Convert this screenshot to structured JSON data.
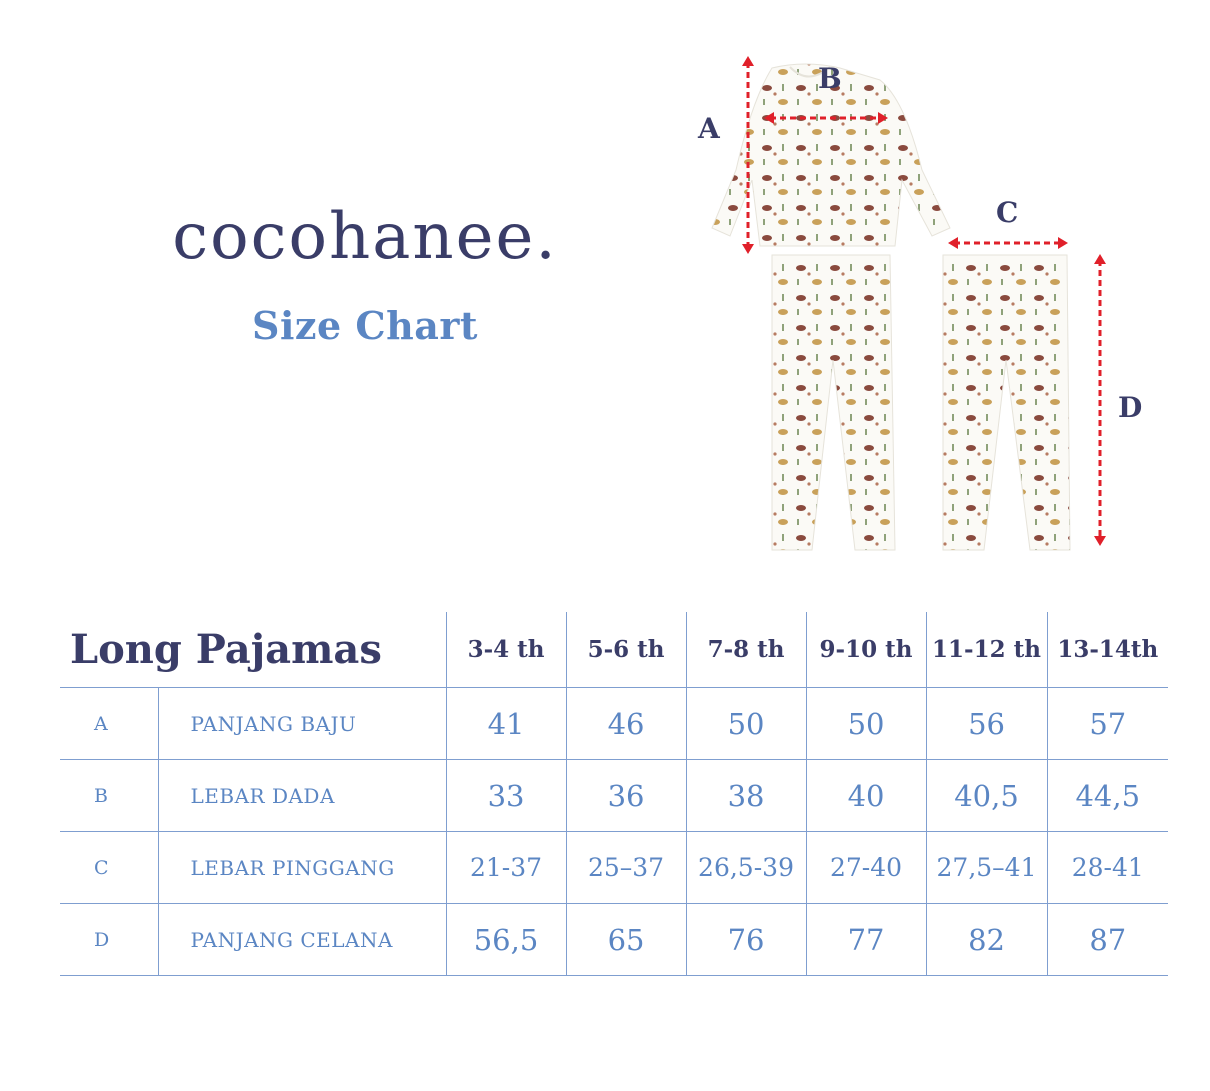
{
  "brand": {
    "logo_text": "cocohanee.",
    "subtitle": "Size Chart"
  },
  "illustration": {
    "labels": [
      "A",
      "B",
      "C",
      "D"
    ],
    "measure_color": "#e0202a"
  },
  "table": {
    "title": "Long Pajamas",
    "sizes": [
      "3-4 th",
      "5-6 th",
      "7-8 th",
      "9-10 th",
      "11-12 th",
      "13-14th"
    ],
    "rows": [
      {
        "code": "A",
        "label": "PANJANG BAJU",
        "values": [
          "41",
          "46",
          "50",
          "50",
          "56",
          "57"
        ]
      },
      {
        "code": "B",
        "label": "LEBAR DADA",
        "values": [
          "33",
          "36",
          "38",
          "40",
          "40,5",
          "44,5"
        ]
      },
      {
        "code": "C",
        "label": "LEBAR PINGGANG",
        "values": [
          "21-37",
          "25–37",
          "26,5-39",
          "27-40",
          "27,5–41",
          "28-41"
        ]
      },
      {
        "code": "D",
        "label": "PANJANG CELANA",
        "values": [
          "56,5",
          "65",
          "76",
          "77",
          "82",
          "87"
        ]
      }
    ]
  },
  "colors": {
    "navy": "#3a3d68",
    "blue": "#5b86c3",
    "grid": "#7f9ed0"
  }
}
